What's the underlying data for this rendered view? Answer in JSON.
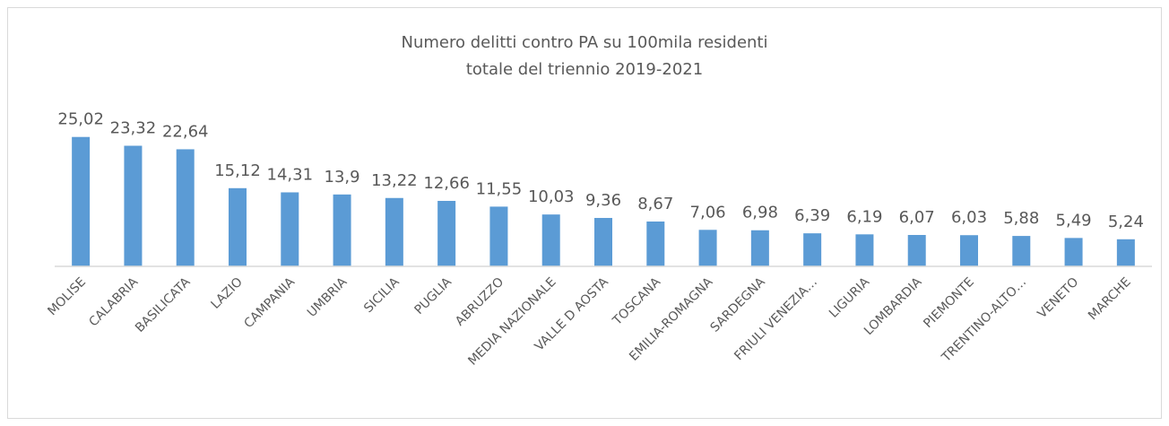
{
  "chart_data": {
    "type": "bar",
    "title": [
      "Numero delitti contro PA su 100mila residenti",
      "totale del triennio 2019-2021"
    ],
    "categories": [
      "MOLISE",
      "CALABRIA",
      "BASILICATA",
      "LAZIO",
      "CAMPANIA",
      "UMBRIA",
      "SICILIA",
      "PUGLIA",
      "ABRUZZO",
      "MEDIA NAZIONALE",
      "VALLE D AOSTA",
      "TOSCANA",
      "EMILIA-ROMAGNA",
      "SARDEGNA",
      "FRIULI VENEZIA…",
      "LIGURIA",
      "LOMBARDIA",
      "PIEMONTE",
      "TRENTINO-ALTO…",
      "VENETO",
      "MARCHE"
    ],
    "values": [
      25.02,
      23.32,
      22.64,
      15.12,
      14.31,
      13.9,
      13.22,
      12.66,
      11.55,
      10.03,
      9.36,
      8.67,
      7.06,
      6.98,
      6.39,
      6.19,
      6.07,
      6.03,
      5.88,
      5.49,
      5.24
    ],
    "value_labels": [
      "25,02",
      "23,32",
      "22,64",
      "15,12",
      "14,31",
      "13,9",
      "13,22",
      "12,66",
      "11,55",
      "10,03",
      "9,36",
      "8,67",
      "7,06",
      "6,98",
      "6,39",
      "6,19",
      "6,07",
      "6,03",
      "5,88",
      "5,49",
      "5,24"
    ],
    "color": "#5b9bd5",
    "ylim": [
      0,
      30
    ]
  }
}
